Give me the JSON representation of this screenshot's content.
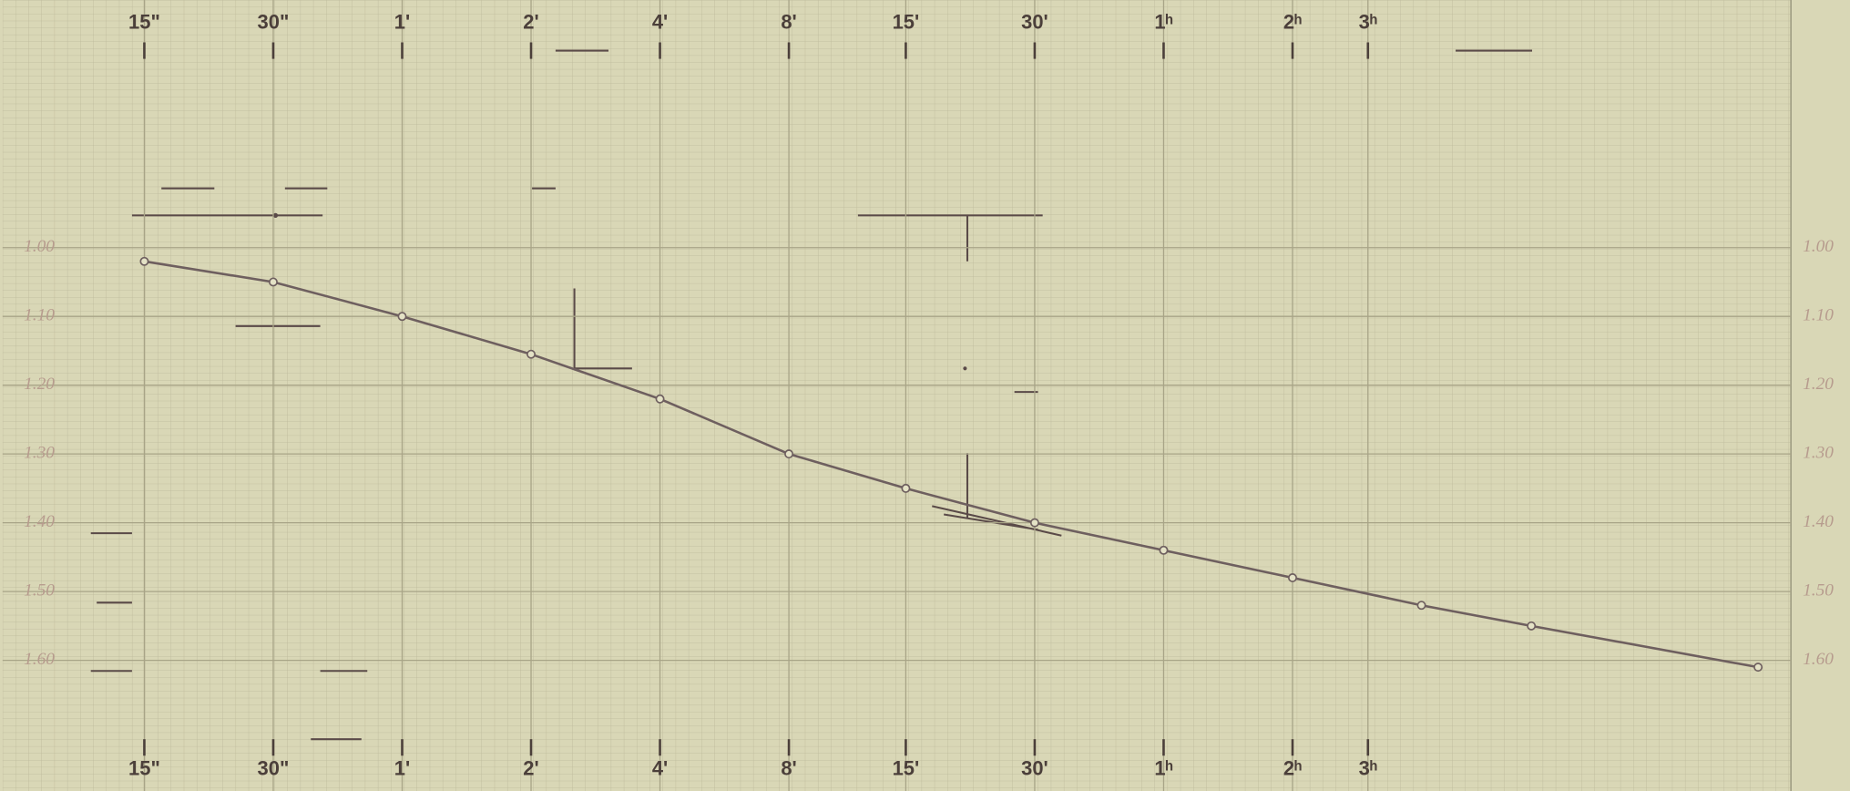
{
  "chart_data": {
    "type": "line",
    "color": "#6e5f5f",
    "log_x": true,
    "y_inverted": true,
    "grid": true,
    "x": [
      15,
      30,
      60,
      120,
      240,
      480,
      900,
      1800,
      3600,
      7200,
      14400,
      26000,
      88000
    ],
    "values": [
      1.02,
      1.05,
      1.1,
      1.155,
      1.22,
      1.3,
      1.35,
      1.4,
      1.44,
      1.48,
      1.52,
      1.55,
      1.61
    ],
    "xlim": [
      7,
      105000
    ],
    "xticks": [
      {
        "value": 15,
        "label": "15\""
      },
      {
        "value": 30,
        "label": "30\""
      },
      {
        "value": 60,
        "label": "1'"
      },
      {
        "value": 120,
        "label": "2'"
      },
      {
        "value": 240,
        "label": "4'"
      },
      {
        "value": 480,
        "label": "8'"
      },
      {
        "value": 900,
        "label": "15'"
      },
      {
        "value": 1800,
        "label": "30'"
      },
      {
        "value": 3600,
        "label": "1ʰ"
      },
      {
        "value": 7200,
        "label": "2ʰ"
      },
      {
        "value": 10800,
        "label": "3ʰ"
      }
    ],
    "ylim": [
      0.64,
      1.79
    ],
    "yticks": [
      {
        "value": 1,
        "label": "1.00"
      },
      {
        "value": 1.1,
        "label": "1.10"
      },
      {
        "value": 1.2,
        "label": "1.20"
      },
      {
        "value": 1.3,
        "label": "1.30"
      },
      {
        "value": 1.4,
        "label": "1.40"
      },
      {
        "value": 1.5,
        "label": "1.50"
      },
      {
        "value": 1.6,
        "label": "1.60"
      }
    ]
  }
}
